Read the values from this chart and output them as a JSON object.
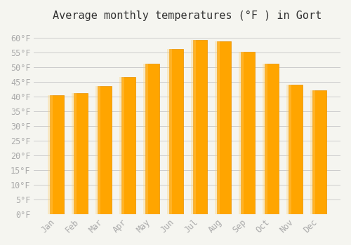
{
  "title": "Average monthly temperatures (°F ) in Gort",
  "months": [
    "Jan",
    "Feb",
    "Mar",
    "Apr",
    "May",
    "Jun",
    "Jul",
    "Aug",
    "Sep",
    "Oct",
    "Nov",
    "Dec"
  ],
  "values": [
    40.5,
    41.2,
    43.5,
    46.5,
    51.2,
    56.0,
    59.2,
    58.8,
    55.2,
    51.0,
    44.0,
    42.0
  ],
  "bar_color": "#FFA500",
  "bar_edge_color": "#E89000",
  "background_color": "#F5F5F0",
  "grid_color": "#CCCCCC",
  "ylim": [
    0,
    63
  ],
  "yticks": [
    0,
    5,
    10,
    15,
    20,
    25,
    30,
    35,
    40,
    45,
    50,
    55,
    60
  ],
  "title_fontsize": 11,
  "tick_fontsize": 8.5,
  "tick_color": "#AAAAAA",
  "font_family": "monospace"
}
